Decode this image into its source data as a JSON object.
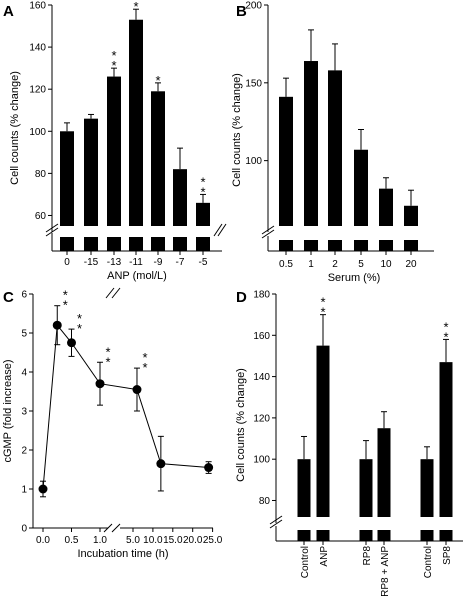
{
  "chart_data": [
    {
      "panel": "A",
      "type": "bar",
      "ylabel": "Cell counts (% change)",
      "xlabel": "ANP (mol/L)",
      "categories": [
        "0",
        "-15",
        "-13",
        "-11",
        "-9",
        "-7",
        "-5"
      ],
      "values": [
        100,
        106,
        126,
        153,
        119,
        82,
        66
      ],
      "errors": [
        4,
        2,
        4,
        5,
        4,
        10,
        4
      ],
      "significance": [
        "",
        "",
        "**",
        "**",
        "*",
        "",
        "**"
      ],
      "yticks": [
        "60",
        "80",
        "100",
        "120",
        "140",
        "160"
      ],
      "ylim": [
        55,
        160
      ],
      "axis_break": true
    },
    {
      "panel": "B",
      "type": "bar",
      "ylabel": "Cell counts (% change)",
      "xlabel": "Serum (%)",
      "categories": [
        "0.5",
        "1",
        "2",
        "5",
        "10",
        "20"
      ],
      "values": [
        141,
        164,
        158,
        107,
        82,
        71
      ],
      "errors": [
        12,
        20,
        17,
        13,
        7,
        10
      ],
      "significance": [
        "",
        "",
        "",
        "",
        "",
        ""
      ],
      "yticks": [
        "100",
        "150",
        "200"
      ],
      "ylim": [
        58,
        200
      ],
      "axis_break": true
    },
    {
      "panel": "C",
      "type": "line",
      "ylabel": "cGMP (fold increase)",
      "xlabel": "Incubation time (h)",
      "x": [
        0,
        0.25,
        0.5,
        1,
        6,
        12,
        24
      ],
      "y": [
        1.0,
        5.2,
        4.75,
        3.7,
        3.55,
        1.65,
        1.55
      ],
      "errors": [
        0.2,
        0.5,
        0.35,
        0.55,
        0.55,
        0.7,
        0.15
      ],
      "significance": [
        "",
        "**",
        "**",
        "**",
        "**",
        "",
        ""
      ],
      "xticks": [
        "0.0",
        "0.5",
        "1.0",
        "5.0",
        "10.0",
        "15.0",
        "20.0",
        "25.0"
      ],
      "yticks": [
        "0",
        "1",
        "2",
        "3",
        "4",
        "5",
        "6"
      ],
      "ylim": [
        0,
        6
      ],
      "axis_break": true
    },
    {
      "panel": "D",
      "type": "bar",
      "ylabel": "Cell counts (% change)",
      "categories": [
        "Control",
        "ANP",
        "RP8",
        "RP8 + ANP",
        "Control",
        "SP8"
      ],
      "values": [
        100,
        155,
        100,
        115,
        100,
        147
      ],
      "errors": [
        11,
        15,
        9,
        8,
        6,
        11
      ],
      "significance": [
        "",
        "**",
        "",
        "",
        "",
        "**"
      ],
      "yticks": [
        "80",
        "100",
        "120",
        "140",
        "160",
        "180"
      ],
      "ylim": [
        72,
        180
      ],
      "axis_break": true
    }
  ],
  "panel_labels": [
    "A",
    "B",
    "C",
    "D"
  ]
}
